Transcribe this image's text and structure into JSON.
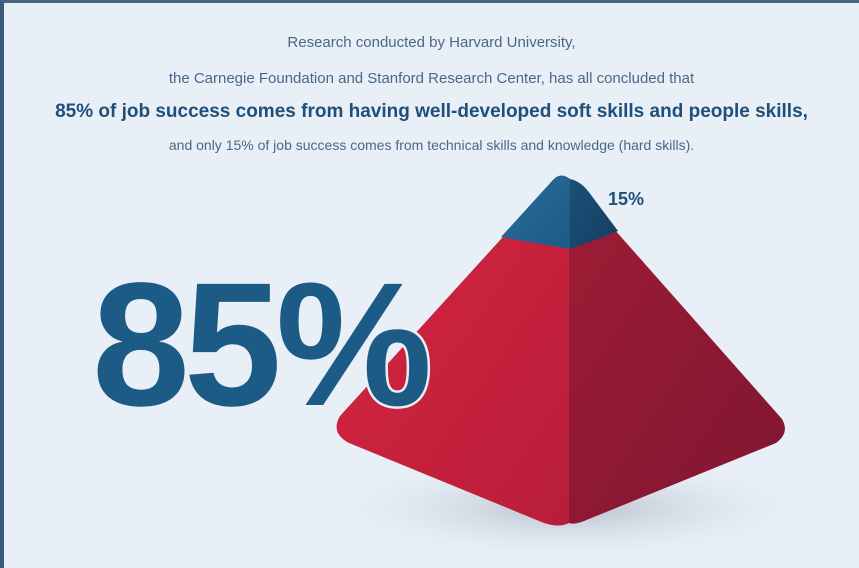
{
  "intro": {
    "line1": "Research conducted by Harvard University,",
    "line2": "the Carnegie Foundation and Stanford Research Center, has all concluded that",
    "headline": "85% of job success comes from having well-developed soft skills and people skills,",
    "line4": "and only 15% of job success comes from technical skills and knowledge (hard skills)."
  },
  "stats": {
    "big_value": "85%",
    "small_value": "15%"
  },
  "colors": {
    "background": "#e9eff7",
    "blue": "#1c5b86",
    "red_light": "#c8233d",
    "red_dark": "#8f1a34",
    "shadow": "#c9ced8"
  }
}
